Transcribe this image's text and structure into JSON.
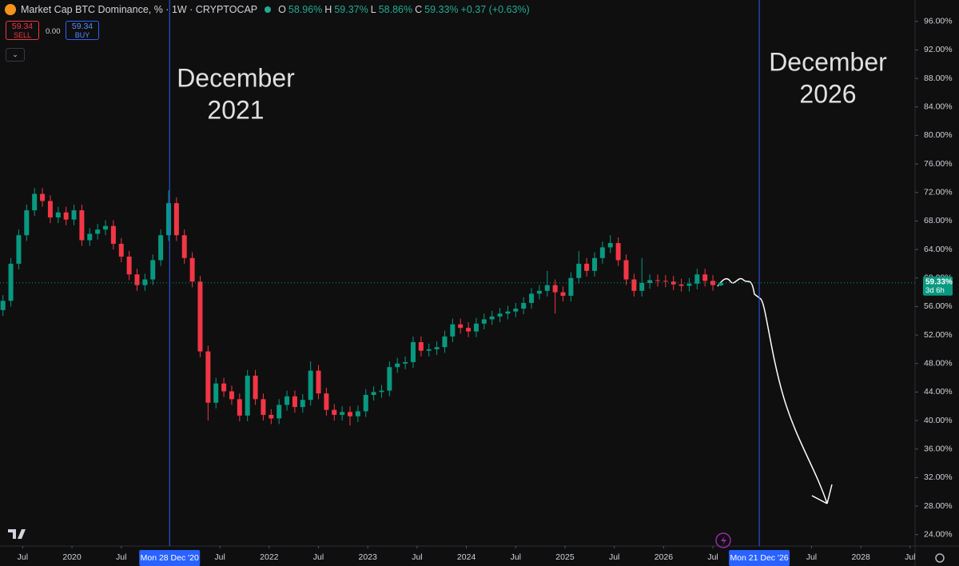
{
  "header": {
    "title": "Market Cap BTC Dominance, % · 1W · CRYPTOCAP",
    "ohlc": [
      {
        "key": "O",
        "value": "58.96%"
      },
      {
        "key": "H",
        "value": "59.37%"
      },
      {
        "key": "L",
        "value": "58.86%"
      },
      {
        "key": "C",
        "value": "59.33%"
      }
    ],
    "change": "+0.37 (+0.63%)"
  },
  "toolbar": {
    "sell_price": "59.34",
    "sell": "SELL",
    "spread": "0.00",
    "buy_price": "59.34",
    "buy": "BUY"
  },
  "chart_data": {
    "type": "candlestick",
    "up_color": "#089981",
    "down_color": "#f23645",
    "x": [
      2019.3,
      2019.38,
      2019.46,
      2019.54,
      2019.62,
      2019.7,
      2019.78,
      2019.86,
      2019.94,
      2020.02,
      2020.1,
      2020.18,
      2020.26,
      2020.34,
      2020.42,
      2020.5,
      2020.58,
      2020.66,
      2020.74,
      2020.82,
      2020.9,
      2020.98,
      2021.06,
      2021.14,
      2021.22,
      2021.3,
      2021.38,
      2021.46,
      2021.54,
      2021.62,
      2021.7,
      2021.78,
      2021.86,
      2021.94,
      2022.02,
      2022.1,
      2022.18,
      2022.26,
      2022.34,
      2022.42,
      2022.5,
      2022.58,
      2022.66,
      2022.74,
      2022.82,
      2022.9,
      2022.98,
      2023.06,
      2023.14,
      2023.22,
      2023.3,
      2023.38,
      2023.46,
      2023.54,
      2023.62,
      2023.7,
      2023.78,
      2023.86,
      2023.94,
      2024.02,
      2024.1,
      2024.18,
      2024.26,
      2024.34,
      2024.42,
      2024.5,
      2024.58,
      2024.66,
      2024.74,
      2024.82,
      2024.9,
      2024.98,
      2025.06,
      2025.14,
      2025.22,
      2025.3,
      2025.38,
      2025.46,
      2025.54,
      2025.62,
      2025.7,
      2025.78,
      2025.86,
      2025.94,
      2026.02,
      2026.1,
      2026.18,
      2026.26,
      2026.34,
      2026.42,
      2026.5,
      2026.58
    ],
    "open": [
      55.5,
      56.8,
      62.0,
      66.0,
      69.5,
      71.8,
      70.8,
      68.5,
      69.2,
      68.2,
      69.5,
      65.3,
      66.2,
      66.8,
      67.3,
      64.8,
      63.0,
      60.5,
      59.0,
      59.8,
      62.5,
      66.0,
      70.5,
      66.0,
      62.8,
      59.5,
      49.7,
      42.5,
      45.2,
      44.1,
      43.0,
      40.7,
      46.3,
      43.0,
      40.8,
      40.3,
      42.2,
      43.4,
      41.9,
      42.9,
      47.0,
      43.8,
      41.5,
      40.8,
      41.2,
      40.6,
      41.3,
      43.6,
      44.0,
      44.2,
      47.5,
      48.0,
      48.2,
      51.0,
      49.8,
      50.0,
      50.3,
      51.8,
      53.5,
      53.0,
      52.5,
      53.6,
      54.2,
      54.6,
      55.0,
      55.3,
      55.7,
      56.5,
      57.8,
      58.2,
      59.0,
      58.0,
      57.5,
      60.0,
      62.0,
      61.0,
      62.8,
      64.3,
      64.9,
      62.5,
      59.8,
      58.2,
      59.3,
      59.7,
      59.6,
      59.5,
      59.1,
      58.9,
      59.2,
      60.5,
      59.6,
      58.96
    ],
    "high": [
      57.6,
      62.8,
      66.8,
      70.3,
      72.6,
      72.6,
      71.6,
      70.0,
      70.0,
      70.3,
      70.3,
      67.0,
      67.6,
      68.1,
      68.1,
      65.6,
      63.8,
      61.3,
      60.6,
      63.3,
      66.8,
      72.3,
      71.3,
      66.8,
      63.6,
      60.3,
      50.5,
      46.0,
      46.0,
      44.9,
      43.8,
      47.1,
      47.1,
      43.8,
      41.6,
      43.0,
      44.2,
      44.2,
      43.7,
      48.3,
      47.8,
      44.6,
      42.3,
      42.0,
      42.0,
      42.1,
      44.4,
      44.8,
      45.0,
      48.3,
      48.8,
      49.0,
      51.8,
      51.8,
      50.8,
      51.1,
      52.6,
      54.3,
      54.3,
      53.8,
      54.4,
      55.0,
      55.4,
      55.8,
      56.1,
      56.5,
      57.3,
      58.6,
      59.0,
      61.0,
      59.8,
      58.8,
      60.8,
      63.8,
      62.8,
      63.6,
      65.1,
      66.0,
      65.7,
      63.3,
      60.6,
      62.8,
      60.5,
      60.5,
      60.4,
      60.3,
      59.9,
      60.0,
      61.3,
      61.3,
      60.4,
      59.37
    ],
    "low": [
      54.7,
      56.0,
      61.2,
      65.2,
      68.7,
      70.0,
      67.7,
      67.7,
      67.4,
      67.4,
      64.5,
      64.5,
      65.4,
      66.0,
      64.0,
      62.2,
      59.7,
      58.2,
      58.2,
      59.0,
      61.7,
      65.2,
      65.2,
      62.0,
      58.7,
      48.9,
      40.0,
      41.7,
      43.3,
      42.2,
      39.9,
      39.9,
      42.2,
      40.0,
      39.5,
      39.5,
      41.4,
      41.1,
      41.1,
      42.1,
      43.0,
      40.7,
      40.0,
      40.0,
      39.3,
      39.8,
      40.5,
      42.8,
      43.2,
      43.4,
      46.7,
      47.2,
      47.4,
      49.0,
      49.0,
      49.2,
      49.5,
      51.0,
      52.2,
      51.7,
      51.7,
      52.8,
      53.4,
      53.8,
      54.2,
      54.5,
      54.9,
      55.7,
      57.0,
      57.4,
      55.0,
      56.7,
      56.7,
      59.2,
      60.2,
      60.2,
      62.0,
      63.5,
      61.7,
      59.0,
      57.4,
      57.4,
      58.5,
      58.8,
      58.7,
      58.3,
      58.1,
      58.1,
      58.4,
      58.8,
      58.2,
      58.86
    ],
    "close": [
      56.8,
      62.0,
      66.0,
      69.5,
      71.8,
      70.8,
      68.5,
      69.2,
      68.2,
      69.5,
      65.3,
      66.2,
      66.8,
      67.3,
      64.8,
      63.0,
      60.5,
      59.0,
      59.8,
      62.5,
      66.0,
      70.5,
      66.0,
      62.8,
      59.5,
      49.7,
      42.5,
      45.2,
      44.1,
      43.0,
      40.7,
      46.3,
      43.0,
      40.8,
      40.3,
      42.2,
      43.4,
      41.9,
      42.9,
      47.0,
      43.8,
      41.5,
      40.8,
      41.2,
      40.6,
      41.3,
      43.6,
      44.0,
      44.2,
      47.5,
      48.0,
      48.2,
      51.0,
      49.8,
      50.0,
      50.3,
      51.8,
      53.5,
      53.0,
      52.5,
      53.6,
      54.2,
      54.6,
      55.0,
      55.3,
      55.7,
      56.5,
      57.8,
      58.2,
      59.0,
      58.0,
      57.5,
      60.0,
      62.0,
      61.0,
      62.8,
      64.3,
      64.9,
      62.5,
      59.8,
      58.2,
      59.3,
      59.7,
      59.6,
      59.5,
      59.1,
      58.9,
      59.2,
      60.5,
      59.6,
      59.0,
      59.33
    ],
    "xlim": [
      2019.27,
      2028.55
    ],
    "xticks": [
      {
        "value": 2019.5,
        "label": "Jul"
      },
      2020,
      {
        "value": 2020.5,
        "label": "Jul"
      },
      {
        "value": 2021.5,
        "label": "Jul"
      },
      2022,
      {
        "value": 2022.5,
        "label": "Jul"
      },
      2023,
      {
        "value": 2023.5,
        "label": "Jul"
      },
      2024,
      {
        "value": 2024.5,
        "label": "Jul"
      },
      2025,
      {
        "value": 2025.5,
        "label": "Jul"
      },
      2026,
      {
        "value": 2026.5,
        "label": "Jul"
      },
      {
        "value": 2027.5,
        "label": "Jul"
      },
      2028,
      {
        "value": 2028.5,
        "label": "Jul"
      }
    ],
    "ylim": [
      22.4,
      99.0
    ],
    "yticks": [
      {
        "value": 24,
        "label": "24.00%"
      },
      {
        "value": 28,
        "label": "28.00%"
      },
      {
        "value": 32,
        "label": "32.00%"
      },
      {
        "value": 36,
        "label": "36.00%"
      },
      {
        "value": 40,
        "label": "40.00%"
      },
      {
        "value": 44,
        "label": "44.00%"
      },
      {
        "value": 48,
        "label": "48.00%"
      },
      {
        "value": 52,
        "label": "52.00%"
      },
      {
        "value": 56,
        "label": "56.00%"
      },
      {
        "value": 60,
        "label": "60.00%"
      },
      {
        "value": 64,
        "label": "64.00%"
      },
      {
        "value": 68,
        "label": "68.00%"
      },
      {
        "value": 72,
        "label": "72.00%"
      },
      {
        "value": 76,
        "label": "76.00%"
      },
      {
        "value": 80,
        "label": "80.00%"
      },
      {
        "value": 84,
        "label": "84.00%"
      },
      {
        "value": 88,
        "label": "88.00%"
      },
      {
        "value": 92,
        "label": "92.00%"
      },
      {
        "value": 96,
        "label": "96.00%"
      }
    ],
    "grid": false,
    "markers": [
      {
        "x": 2020.99,
        "label": "Mon 28 Dec '20",
        "color": "#2962ff"
      },
      {
        "x": 2026.97,
        "label": "Mon 21 Dec '26",
        "color": "#2962ff"
      }
    ],
    "annotations": [
      [
        "December",
        "2021"
      ],
      [
        "December",
        "2026"
      ]
    ],
    "last_price": {
      "value": 59.33,
      "label": "59.33%",
      "countdown": "3d 6h",
      "color": "#089981"
    }
  }
}
